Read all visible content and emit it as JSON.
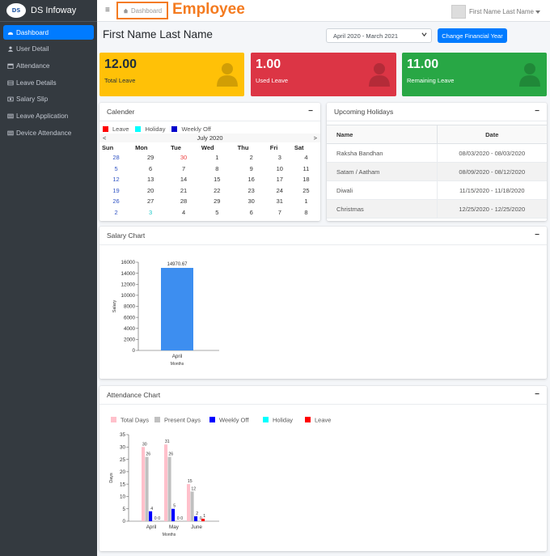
{
  "brand": {
    "logo": "DS",
    "name": "DS Infoway"
  },
  "sidebar": {
    "items": [
      {
        "label": "Dashboard",
        "icon": "dashboard-icon",
        "active": true
      },
      {
        "label": "User Detail",
        "icon": "user-icon"
      },
      {
        "label": "Attendance",
        "icon": "calendar-icon"
      },
      {
        "label": "Leave Details",
        "icon": "table-icon"
      },
      {
        "label": "Salary Slip",
        "icon": "slip-icon"
      },
      {
        "label": "Leave Application",
        "icon": "list-icon"
      },
      {
        "label": "Device Attendance",
        "icon": "list-icon"
      }
    ]
  },
  "header": {
    "menu_glyph": "≡",
    "breadcrumb": "Dashboard",
    "annotation": "Employee",
    "user_name": "First Name Last Name"
  },
  "page": {
    "title": "First Name Last Name",
    "financial_year": "April 2020 - March 2021",
    "change_fy_label": "Change Financial Year"
  },
  "stats": {
    "total": {
      "value": "12.00",
      "label": "Total Leave",
      "color": "#ffc107"
    },
    "used": {
      "value": "1.00",
      "label": "Used Leave",
      "color": "#dc3545"
    },
    "remaining": {
      "value": "11.00",
      "label": "Remaining Leave",
      "color": "#28a745"
    }
  },
  "calendar": {
    "title": "Calender",
    "legend": [
      {
        "label": "Leave",
        "color": "#ff0000"
      },
      {
        "label": "Holiday",
        "color": "#00ffff"
      },
      {
        "label": "Weekly Off",
        "color": "#0000cc"
      }
    ],
    "month": "July 2020",
    "prev": "<",
    "next": ">",
    "weekdays": [
      "Sun",
      "Mon",
      "Tue",
      "Wed",
      "Thu",
      "Fri",
      "Sat"
    ],
    "weeks": [
      [
        "28",
        "29",
        "30",
        "1",
        "2",
        "3",
        "4"
      ],
      [
        "5",
        "6",
        "7",
        "8",
        "9",
        "10",
        "11"
      ],
      [
        "12",
        "13",
        "14",
        "15",
        "16",
        "17",
        "18"
      ],
      [
        "19",
        "20",
        "21",
        "22",
        "23",
        "24",
        "25"
      ],
      [
        "26",
        "27",
        "28",
        "29",
        "30",
        "31",
        "1"
      ],
      [
        "2",
        "3",
        "4",
        "5",
        "6",
        "7",
        "8"
      ]
    ]
  },
  "holidays": {
    "title": "Upcoming Holidays",
    "columns": [
      "Name",
      "Date"
    ],
    "rows": [
      {
        "name": "Raksha Bandhan",
        "date": "08/03/2020 - 08/03/2020"
      },
      {
        "name": "Satam / Aatham",
        "date": "08/09/2020 - 08/12/2020"
      },
      {
        "name": "Diwali",
        "date": "11/15/2020 - 11/18/2020"
      },
      {
        "name": "Christmas",
        "date": "12/25/2020 - 12/25/2020"
      }
    ]
  },
  "salary_chart": {
    "title": "Salary Chart",
    "collapse_glyph": "−"
  },
  "attendance_chart": {
    "title": "Attendance Chart"
  },
  "chart_data": [
    {
      "type": "bar",
      "categories": [
        "April"
      ],
      "series": [
        {
          "values": [
            14970.67
          ],
          "color": "#3d8ef0"
        }
      ],
      "value_labels": [
        "14970.67"
      ],
      "xlabel": "Months",
      "ylabel": "Salary",
      "ylim": [
        0,
        16000
      ],
      "yticks": [
        0,
        2000,
        4000,
        6000,
        8000,
        10000,
        12000,
        14000,
        16000
      ]
    },
    {
      "type": "bar",
      "categories": [
        "April",
        "May",
        "June"
      ],
      "series": [
        {
          "name": "Total Days",
          "values": [
            30,
            31,
            15
          ],
          "color": "#ffc0cb"
        },
        {
          "name": "Present Days",
          "values": [
            26,
            26,
            12
          ],
          "color": "#c0c0c0"
        },
        {
          "name": "Weekly Off",
          "values": [
            4,
            5,
            2
          ],
          "color": "#0000ff"
        },
        {
          "name": "Holiday",
          "values": [
            0,
            0,
            0
          ],
          "color": "#00ffff"
        },
        {
          "name": "Leave",
          "values": [
            0,
            0,
            1
          ],
          "color": "#ff0000"
        }
      ],
      "value_labels": [
        [
          "30",
          "26",
          "4",
          "0",
          "0"
        ],
        [
          "31",
          "26",
          "5",
          "0",
          "0"
        ],
        [
          "15",
          "12",
          "2",
          "0",
          "1"
        ]
      ],
      "xlabel": "Months",
      "ylabel": "Days",
      "ylim": [
        0,
        35
      ],
      "yticks": [
        0,
        5,
        10,
        15,
        20,
        25,
        30,
        35
      ]
    }
  ]
}
